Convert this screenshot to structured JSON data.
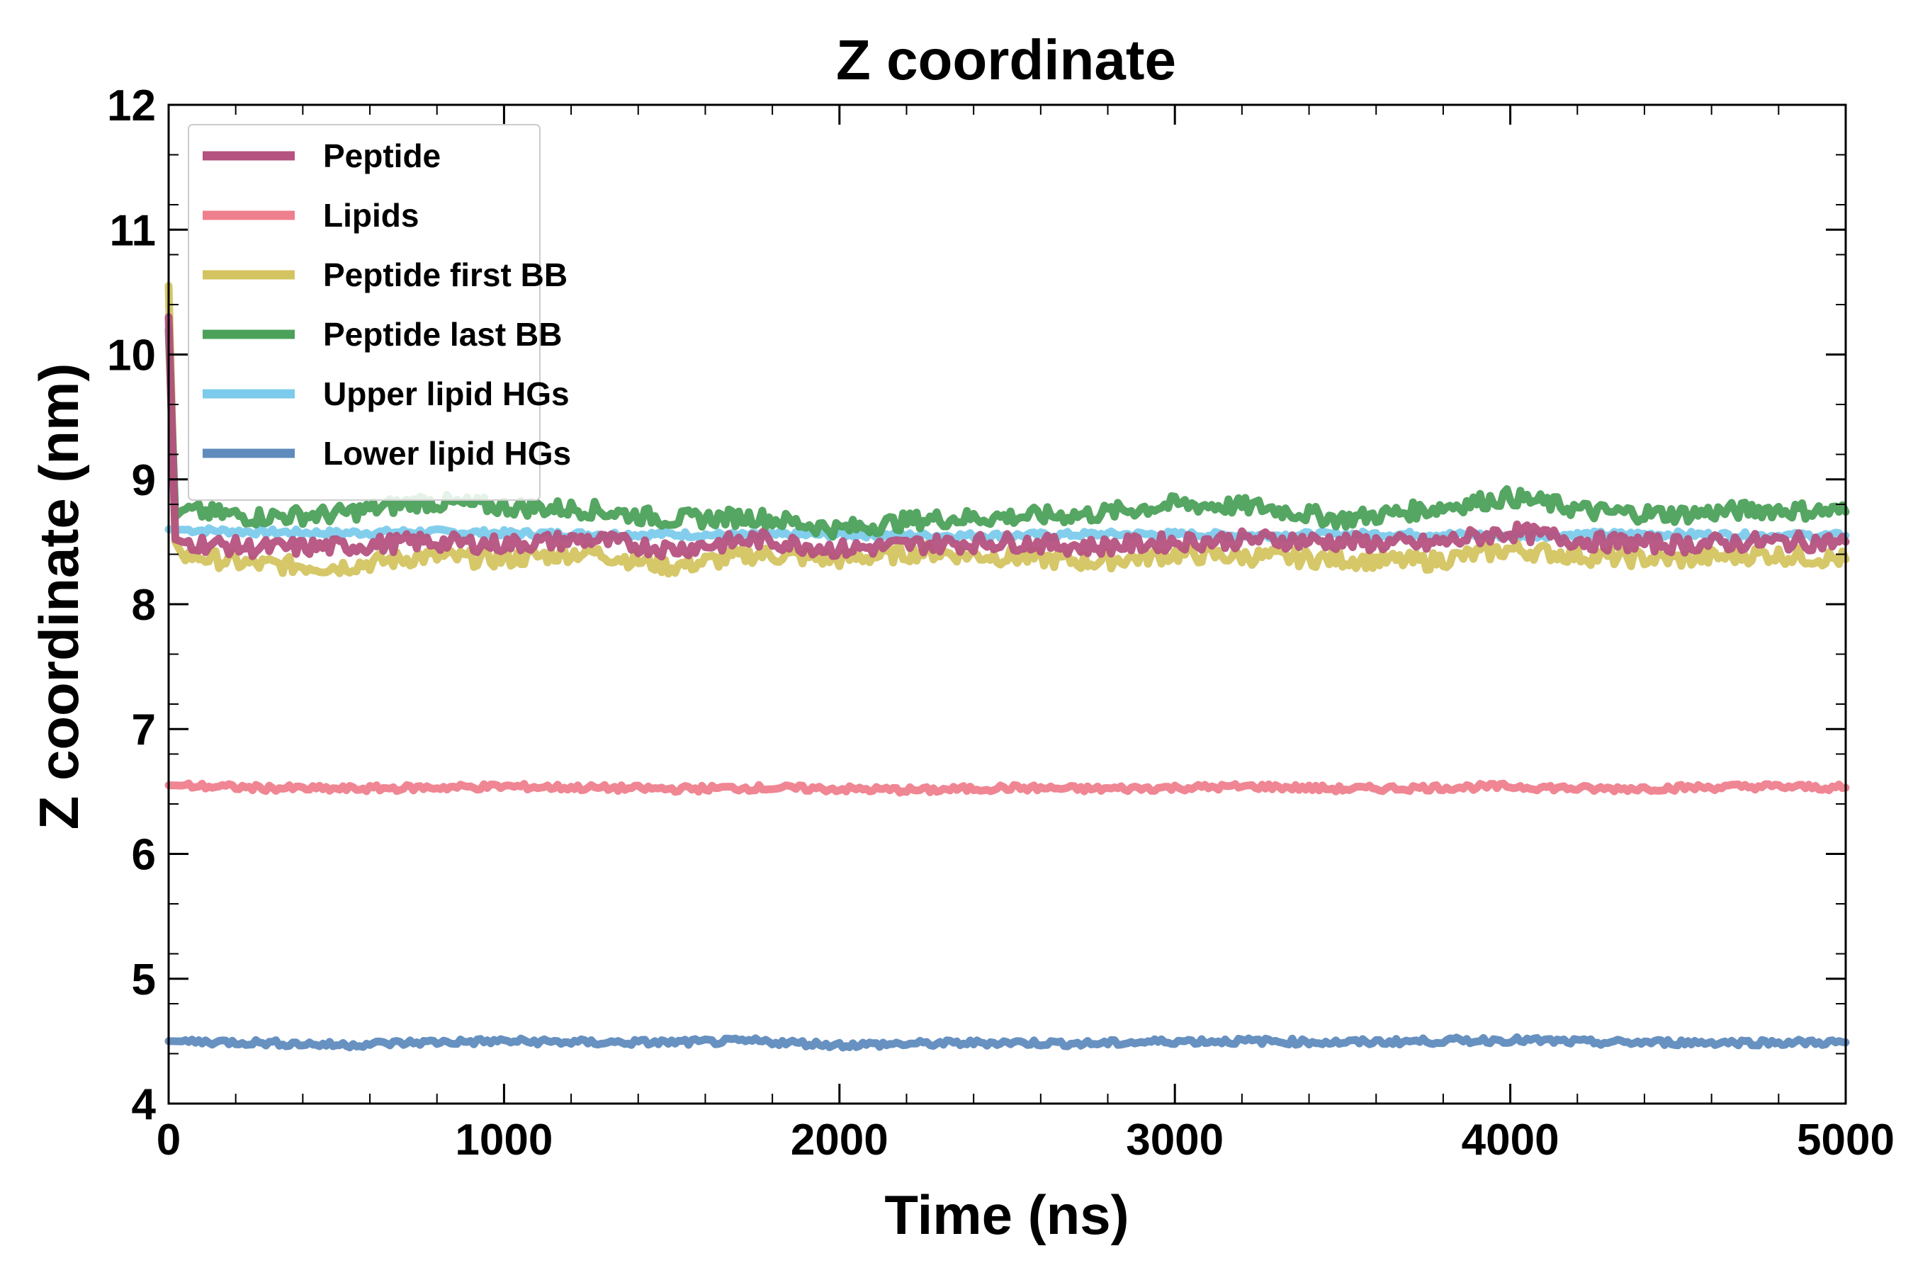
{
  "chart_data": {
    "type": "line",
    "title": "Z coordinate",
    "xlabel": "Time (ns)",
    "ylabel": "Z coordinate (nm)",
    "xlim": [
      0,
      5000
    ],
    "ylim": [
      4,
      12
    ],
    "xticks": [
      0,
      1000,
      2000,
      3000,
      4000,
      5000
    ],
    "yticks": [
      4,
      5,
      6,
      7,
      8,
      9,
      10,
      11,
      12
    ],
    "xtick_labels": [
      "0",
      "1000",
      "2000",
      "3000",
      "4000",
      "5000"
    ],
    "ytick_labels": [
      "4",
      "5",
      "6",
      "7",
      "8",
      "9",
      "10",
      "11",
      "12"
    ],
    "grid": false,
    "legend_position": "top-left",
    "series": [
      {
        "name": "Upper lipid HGs",
        "color": "#7ccbec",
        "x": [
          0,
          250,
          500,
          750,
          1000,
          1250,
          1500,
          1750,
          2000,
          2250,
          2500,
          2750,
          3000,
          3250,
          3500,
          3750,
          4000,
          4250,
          4500,
          4750,
          5000
        ],
        "y": [
          8.6,
          8.58,
          8.57,
          8.58,
          8.57,
          8.56,
          8.56,
          8.55,
          8.56,
          8.55,
          8.55,
          8.56,
          8.56,
          8.55,
          8.56,
          8.56,
          8.55,
          8.56,
          8.56,
          8.55,
          8.55
        ]
      },
      {
        "name": "Peptide first BB",
        "color": "#d4c461",
        "x": [
          0,
          20,
          40,
          250,
          500,
          750,
          1000,
          1250,
          1500,
          1750,
          2000,
          2250,
          2500,
          2750,
          3000,
          3250,
          3500,
          3750,
          4000,
          4250,
          4500,
          4750,
          5000
        ],
        "y": [
          10.55,
          8.5,
          8.4,
          8.32,
          8.3,
          8.38,
          8.36,
          8.42,
          8.3,
          8.4,
          8.36,
          8.42,
          8.38,
          8.34,
          8.4,
          8.38,
          8.36,
          8.34,
          8.44,
          8.38,
          8.36,
          8.4,
          8.36
        ]
      },
      {
        "name": "Peptide last BB",
        "color": "#4ca15a",
        "x": [
          0,
          20,
          40,
          250,
          500,
          750,
          1000,
          1250,
          1500,
          1750,
          2000,
          2250,
          2500,
          2750,
          3000,
          3250,
          3500,
          3750,
          4000,
          4250,
          4500,
          4750,
          5000
        ],
        "y": [
          10.2,
          8.7,
          8.75,
          8.7,
          8.72,
          8.82,
          8.78,
          8.76,
          8.68,
          8.7,
          8.6,
          8.68,
          8.7,
          8.72,
          8.8,
          8.78,
          8.68,
          8.76,
          8.86,
          8.74,
          8.72,
          8.76,
          8.74
        ]
      },
      {
        "name": "Peptide",
        "color": "#b5527f",
        "x": [
          0,
          20,
          40,
          250,
          500,
          750,
          1000,
          1250,
          1500,
          1750,
          2000,
          2250,
          2500,
          2750,
          3000,
          3250,
          3500,
          3750,
          4000,
          4250,
          4500,
          4750,
          5000
        ],
        "y": [
          10.3,
          8.52,
          8.5,
          8.45,
          8.46,
          8.5,
          8.48,
          8.52,
          8.44,
          8.52,
          8.44,
          8.48,
          8.5,
          8.46,
          8.5,
          8.52,
          8.5,
          8.48,
          8.58,
          8.5,
          8.48,
          8.5,
          8.5
        ]
      },
      {
        "name": "Lipids",
        "color": "#ef7f8d",
        "x": [
          0,
          250,
          500,
          750,
          1000,
          1250,
          1500,
          1750,
          2000,
          2250,
          2500,
          2750,
          3000,
          3250,
          3500,
          3750,
          4000,
          4250,
          4500,
          4750,
          5000
        ],
        "y": [
          6.55,
          6.53,
          6.52,
          6.53,
          6.54,
          6.53,
          6.52,
          6.53,
          6.52,
          6.51,
          6.53,
          6.52,
          6.53,
          6.54,
          6.52,
          6.53,
          6.54,
          6.52,
          6.53,
          6.54,
          6.53
        ]
      },
      {
        "name": "Lower lipid HGs",
        "color": "#5f8bbd",
        "x": [
          0,
          250,
          500,
          750,
          1000,
          1250,
          1500,
          1750,
          2000,
          2250,
          2500,
          2750,
          3000,
          3250,
          3500,
          3750,
          4000,
          4250,
          4500,
          4750,
          5000
        ],
        "y": [
          4.5,
          4.49,
          4.47,
          4.49,
          4.5,
          4.49,
          4.49,
          4.5,
          4.47,
          4.48,
          4.49,
          4.48,
          4.5,
          4.5,
          4.49,
          4.5,
          4.51,
          4.49,
          4.49,
          4.49,
          4.49
        ]
      }
    ],
    "legend": [
      {
        "label": "Peptide",
        "color": "#b5527f"
      },
      {
        "label": "Lipids",
        "color": "#ef7f8d"
      },
      {
        "label": "Peptide first BB",
        "color": "#d4c461"
      },
      {
        "label": "Peptide last BB",
        "color": "#4ca15a"
      },
      {
        "label": "Upper lipid HGs",
        "color": "#7ccbec"
      },
      {
        "label": "Lower lipid HGs",
        "color": "#5f8bbd"
      }
    ]
  }
}
